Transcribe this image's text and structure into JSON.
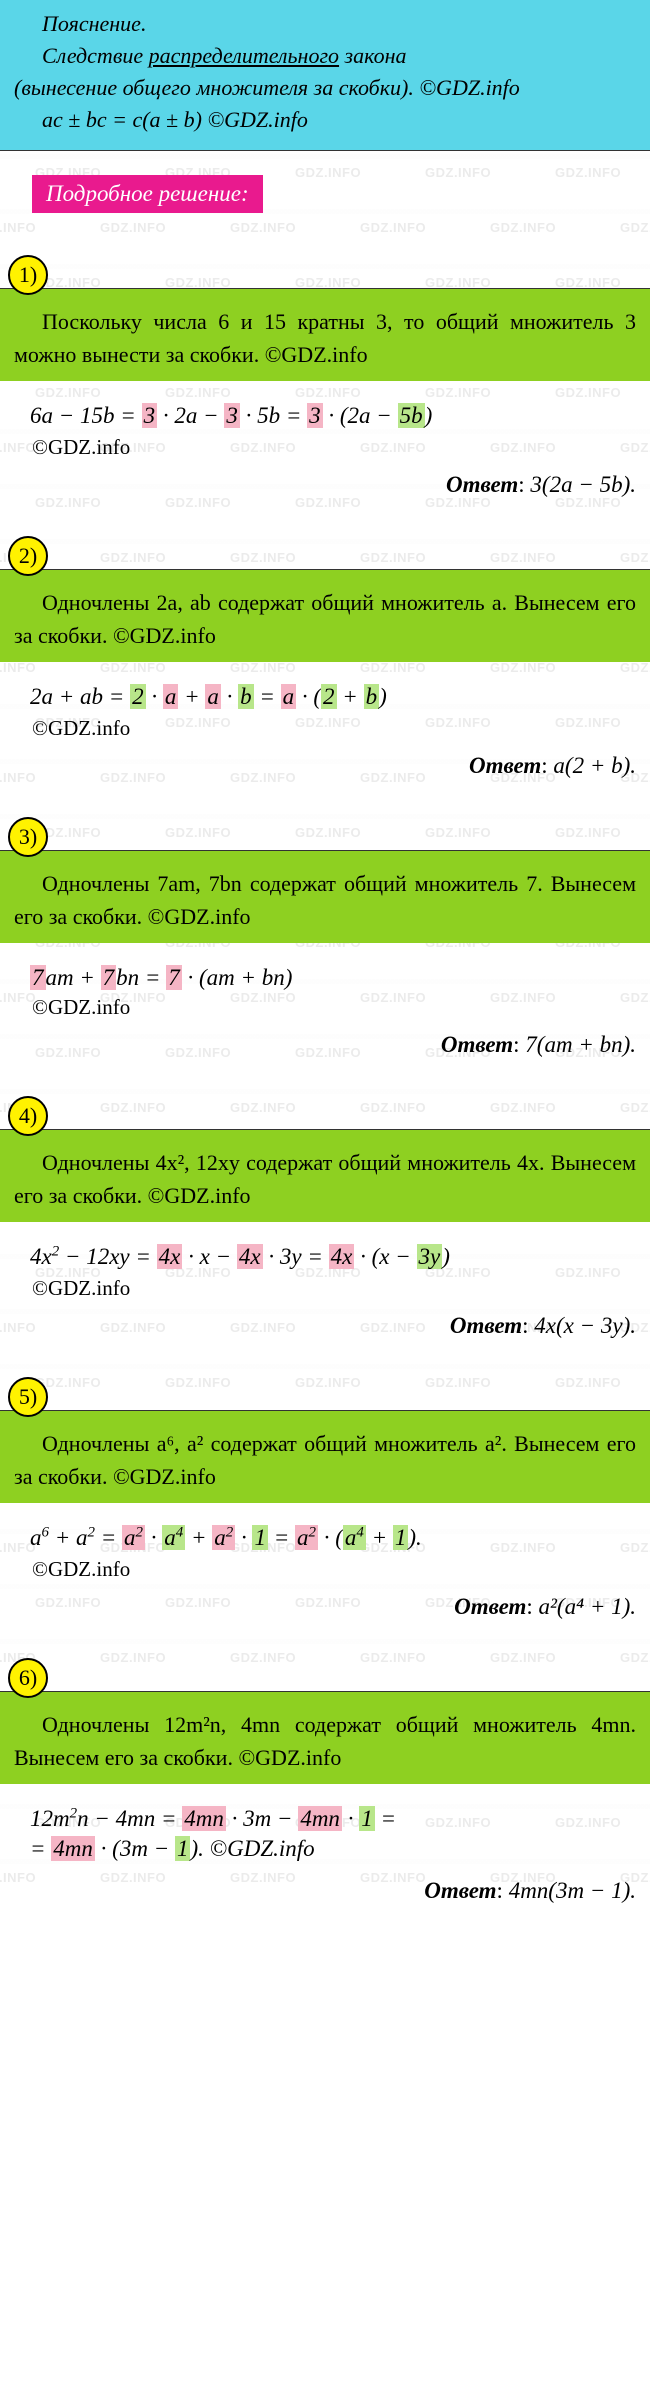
{
  "explanation": {
    "title": "Пояснение.",
    "line1_before": "Следствие ",
    "line1_underlined": "распределительного",
    "line1_after": " закона",
    "line2": "(вынесение общего множителя за скобки). ©GDZ.info",
    "formula": "ac ± bc = c(a ± b) ©GDZ.info"
  },
  "solution_header": "Подробное решение:",
  "watermark_text": "GDZ.INFO",
  "copyright_text": "©GDZ.info",
  "answer_label": "Ответ",
  "problems": [
    {
      "number": "1)",
      "green_text": "Поскольку числа 6 и 15 кратны 3, то общий множитель 3 можно вынести за скобки. ©GDZ.info",
      "equation_html": "6<i>a</i> − 15<i>b</i> = <span class='hl-pink'>3</span> · 2<i>a</i> − <span class='hl-pink'>3</span> · 5<i>b</i> = <span class='hl-pink'>3</span> · (2<i>a</i> − <span class='hl-green'>5<i>b</i></span>)",
      "answer_math": "3(2a − 5b)."
    },
    {
      "number": "2)",
      "green_text": "Одночлены 2a, ab содержат общий множитель a. Вынесем его за скобки. ©GDZ.info",
      "equation_html": "2<i>a</i> + <i>ab</i> = <span class='hl-green'>2</span> · <span class='hl-pink'><i>a</i></span> + <span class='hl-pink'><i>a</i></span> · <span class='hl-green'><i>b</i></span> = <span class='hl-pink'><i>a</i></span> · (<span class='hl-green'>2</span> + <span class='hl-green'><i>b</i></span>)",
      "answer_math": "a(2 + b)."
    },
    {
      "number": "3)",
      "green_text": "Одночлены 7am, 7bn содержат общий множитель 7. Вынесем его за скобки. ©GDZ.info",
      "equation_html": "<span class='hl-pink'>7</span><i>am</i> + <span class='hl-pink'>7</span><i>bn</i> = <span class='hl-pink'>7</span> · (<i>am</i> + <i>bn</i>)",
      "answer_math": "7(am + bn)."
    },
    {
      "number": "4)",
      "green_text": "Одночлены 4x², 12xy содержат общий множитель 4x. Вынесем его за скобки. ©GDZ.info",
      "equation_html": "4<i>x</i><sup>2</sup> − 12<i>xy</i> = <span class='hl-pink'>4<i>x</i></span> · <i>x</i> − <span class='hl-pink'>4<i>x</i></span> · 3<i>y</i> = <span class='hl-pink'>4<i>x</i></span> · (<i>x</i> − <span class='hl-green'>3<i>y</i></span>)",
      "answer_math": "4x(x − 3y)."
    },
    {
      "number": "5)",
      "green_text": "Одночлены a⁶, a² содержат общий множитель a². Вынесем его за скобки. ©GDZ.info",
      "equation_html": "<i>a</i><sup>6</sup> + <i>a</i><sup>2</sup> = <span class='hl-pink'><i>a</i><sup>2</sup></span> · <span class='hl-green'><i>a</i><sup>4</sup></span> + <span class='hl-pink'><i>a</i><sup>2</sup></span> · <span class='hl-green'>1</span> = <span class='hl-pink'><i>a</i><sup>2</sup></span> · (<span class='hl-green'><i>a</i><sup>4</sup></span> + <span class='hl-green'>1</span>).",
      "answer_math": "a²(a⁴ + 1)."
    },
    {
      "number": "6)",
      "green_text": "Одночлены 12m²n, 4mn содержат общий множитель 4mn. Вынесем его за скобки. ©GDZ.info",
      "equation_html": "12<i>m</i><sup>2</sup><i>n</i> − 4<i>mn</i> = <span class='hl-pink'>4<i>mn</i></span> · 3<i>m</i> − <span class='hl-pink'>4<i>mn</i></span> · <span class='hl-green'>1</span> =",
      "equation_line2_html": "= <span class='hl-pink'>4<i>mn</i></span> · (3<i>m</i> − <span class='hl-green'>1</span>). ©GDZ.info",
      "answer_math": "4mn(3m − 1)."
    }
  ],
  "colors": {
    "cyan_bg": "#5ad6e8",
    "magenta_bg": "#e91a8e",
    "yellow_badge": "#fff200",
    "green_box": "#8ed021",
    "pink_hl": "#f5b5c5",
    "green_hl": "#b8e68a",
    "watermark": "#d8d8d8"
  }
}
